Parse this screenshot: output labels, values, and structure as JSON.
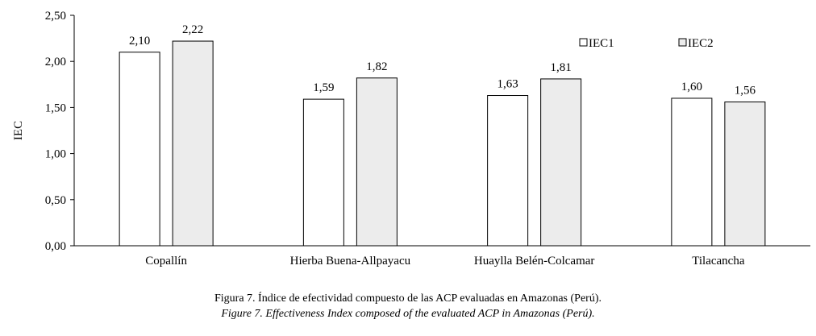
{
  "chart_data": {
    "type": "bar",
    "categories": [
      "Copallín",
      "Hierba Buena-Allpayacu",
      "Huaylla Belén-Colcamar",
      "Tilacancha"
    ],
    "series": [
      {
        "name": "IEC1",
        "values": [
          2.1,
          1.59,
          1.63,
          1.6
        ],
        "value_labels": [
          "2,10",
          "1,59",
          "1,63",
          "1,60"
        ],
        "fill": "#ffffff"
      },
      {
        "name": "IEC2",
        "values": [
          2.22,
          1.82,
          1.81,
          1.56
        ],
        "value_labels": [
          "2,22",
          "1,82",
          "1,81",
          "1,56"
        ],
        "fill": "#ececec"
      }
    ],
    "ylabel": "IEC",
    "xlabel": "",
    "ylim": [
      0,
      2.5
    ],
    "yticks": [
      0,
      0.5,
      1.0,
      1.5,
      2.0,
      2.5
    ],
    "ytick_labels": [
      "0,00",
      "0,50",
      "1,00",
      "1,50",
      "2,00",
      "2,50"
    ],
    "legend_position": "top-right",
    "grid": false
  },
  "caption": {
    "spanish": "Figura 7. Índice de efectividad compuesto de las ACP evaluadas en Amazonas (Perú).",
    "english": "Figure 7. Effectiveness Index composed of the evaluated ACP in Amazonas (Perú)."
  }
}
